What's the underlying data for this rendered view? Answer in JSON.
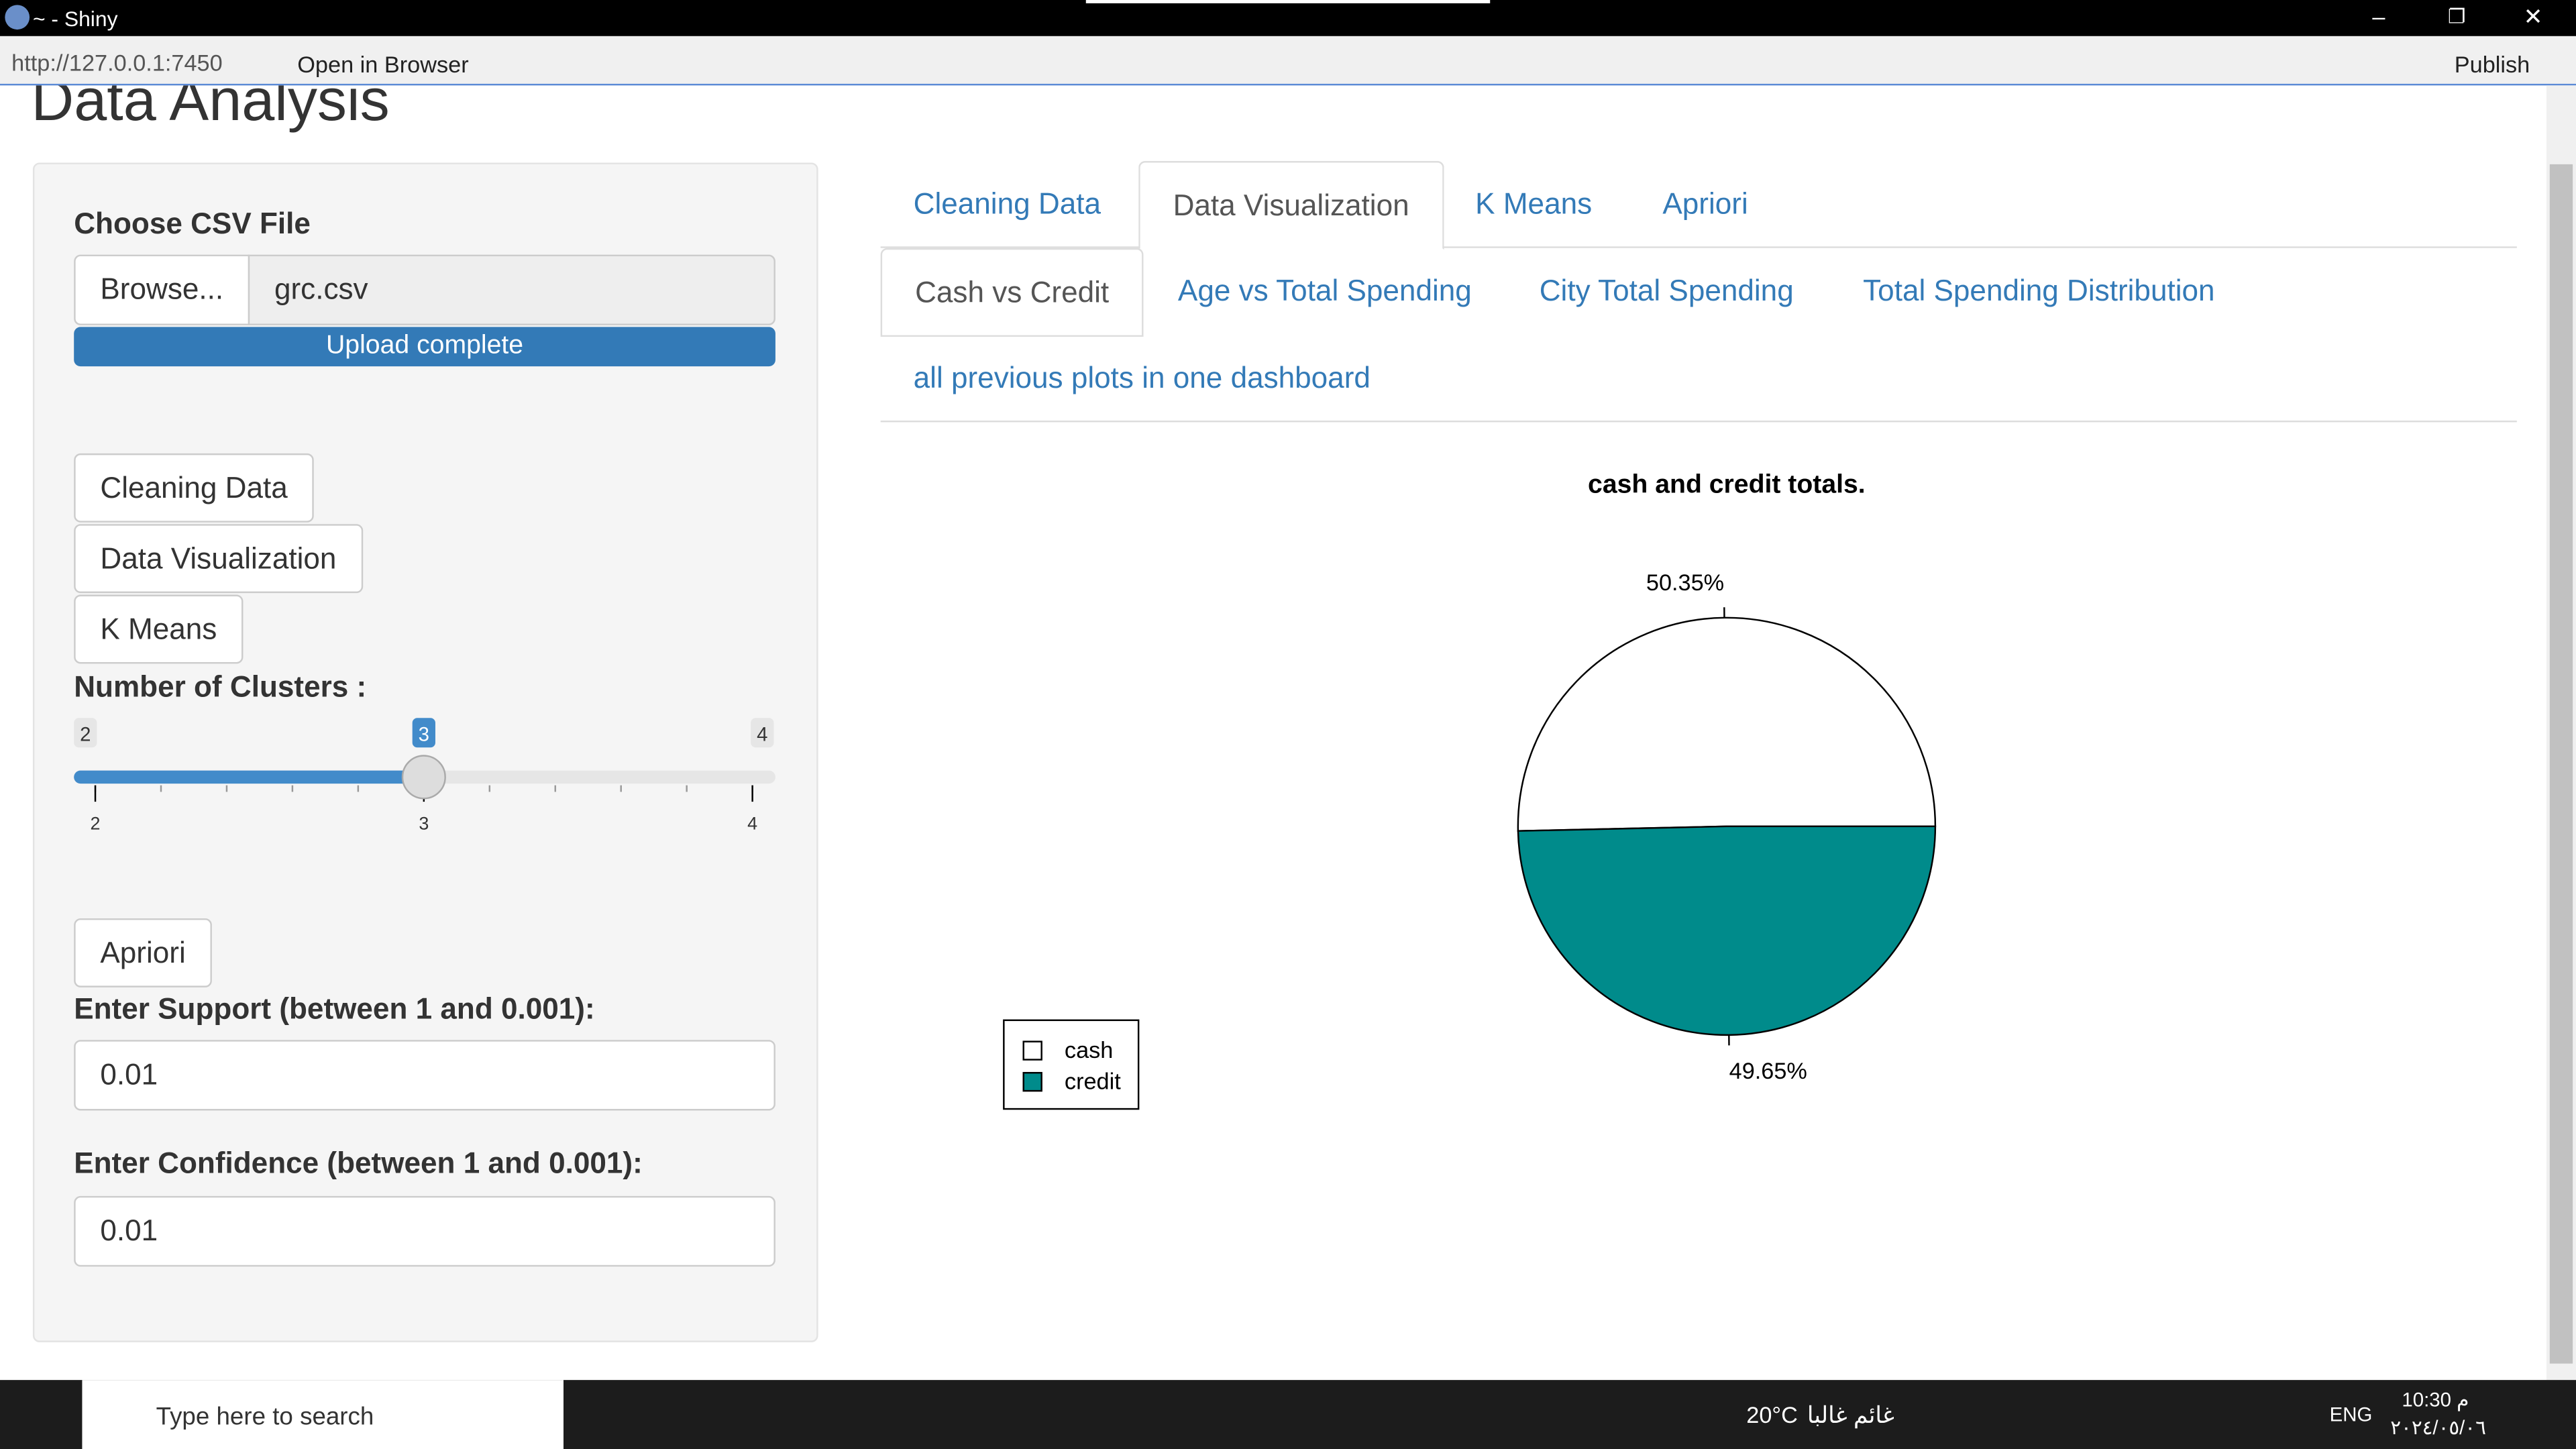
{
  "window": {
    "title": "~ - Shiny",
    "url": "http://127.0.0.1:7450",
    "open_in_browser": "Open in Browser",
    "publish": "Publish"
  },
  "app": {
    "title": "Data Analysis"
  },
  "sidebar": {
    "file_label": "Choose CSV File",
    "browse": "Browse...",
    "file_name": "grc.csv",
    "progress": "Upload complete",
    "buttons": [
      "Cleaning Data",
      "Data Visualization",
      "K Means"
    ],
    "clusters_label": "Number of Clusters :",
    "slider": {
      "min": 2,
      "max": 4,
      "value": 3,
      "ticks": [
        2,
        3,
        4
      ]
    },
    "apriori": "Apriori",
    "support_label": "Enter Support (between 1 and 0.001):",
    "support_value": "0.01",
    "confidence_label": "Enter Confidence (between 1 and 0.001):",
    "confidence_value": "0.01"
  },
  "tabs": [
    "Cleaning Data",
    "Data Visualization",
    "K Means",
    "Apriori"
  ],
  "subtabs": [
    "Cash vs Credit",
    "Age vs Total Spending",
    "City Total Spending",
    "Total Spending Distribution",
    "all previous plots in one dashboard"
  ],
  "chart_data": {
    "type": "pie",
    "title": "cash and credit totals.",
    "categories": [
      "cash",
      "credit"
    ],
    "values": [
      50.35,
      49.65
    ],
    "value_labels": [
      "50.35%",
      "49.65%"
    ],
    "colors": [
      "#ffffff",
      "#008b8b"
    ]
  },
  "taskbar": {
    "search": "Type here to search",
    "temperature": "20°C",
    "weather": "غائم غالبا",
    "language": "ENG",
    "time": "10:30 م",
    "date": "٢٠٢٤/٠٥/٠٦"
  }
}
